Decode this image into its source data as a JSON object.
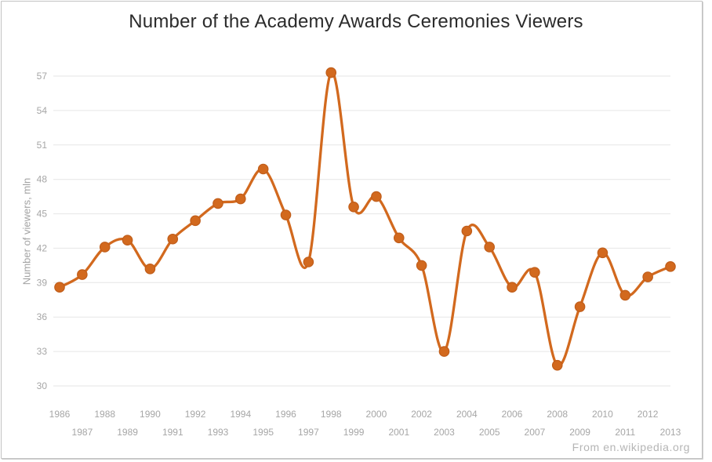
{
  "chart_data": {
    "type": "line",
    "line_style": "spline",
    "marker": "circle",
    "title": "Number of the Academy Awards Ceremonies Viewers",
    "ylabel": "Number of viewers, mln",
    "xlabel": "",
    "attribution": "From en.wikipedia.org",
    "x": [
      "1986",
      "1987",
      "1988",
      "1989",
      "1990",
      "1991",
      "1992",
      "1993",
      "1994",
      "1995",
      "1996",
      "1997",
      "1998",
      "1999",
      "2000",
      "2001",
      "2002",
      "2003",
      "2004",
      "2005",
      "2006",
      "2007",
      "2008",
      "2009",
      "2010",
      "2011",
      "2012",
      "2013"
    ],
    "values": [
      38.6,
      39.7,
      42.1,
      42.7,
      40.2,
      42.8,
      44.4,
      45.9,
      46.3,
      48.9,
      44.9,
      40.8,
      57.3,
      45.6,
      46.5,
      42.9,
      40.5,
      33.0,
      43.5,
      42.1,
      38.6,
      39.9,
      31.8,
      36.9,
      41.6,
      37.9,
      39.5,
      40.4
    ],
    "ylim": [
      30,
      57
    ],
    "yticks": [
      30,
      33,
      36,
      39,
      42,
      45,
      48,
      51,
      54,
      57
    ],
    "grid": "horizontal",
    "legend": "none",
    "xtick_stagger": true,
    "colors": {
      "series": "#d2691e",
      "marker_stroke": "#c05d1a",
      "grid": "#e6e6e6",
      "tick_labels": "#a6a6a6",
      "title": "#2b2b2b",
      "attribution": "#b5b5b5"
    }
  }
}
